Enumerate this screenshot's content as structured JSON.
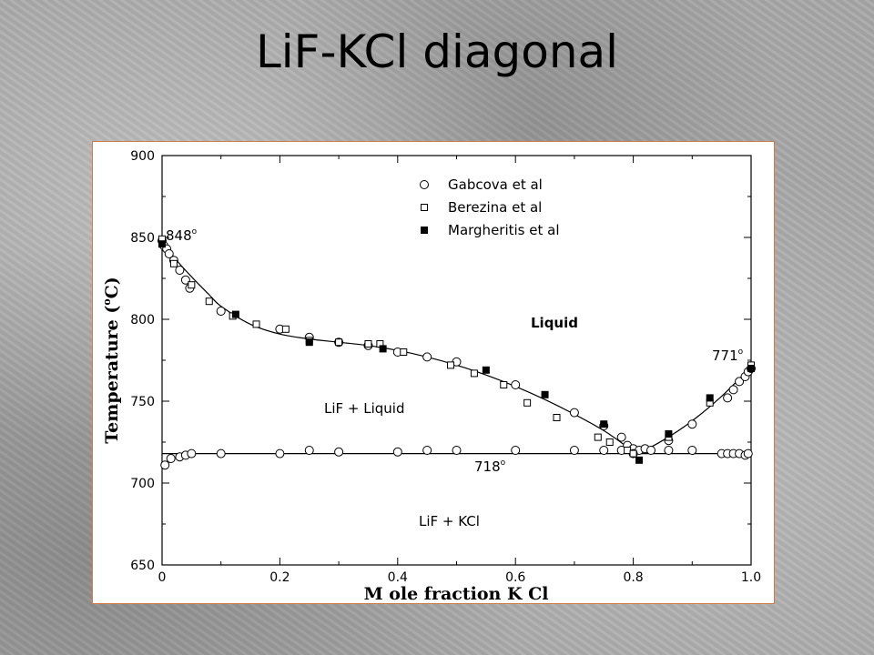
{
  "slide": {
    "title": "LiF-KCl diagonal"
  },
  "chart_data": {
    "type": "scatter",
    "title": "",
    "xlabel": "M ole fraction K Cl",
    "ylabel": "Temperature (°C)",
    "ylabel_parts": {
      "a": "Temperature (",
      "deg": "o",
      "b": "C)"
    },
    "xlim": [
      0,
      1.0
    ],
    "ylim": [
      650,
      900
    ],
    "xticks": [
      0,
      0.2,
      0.4,
      0.6,
      0.8,
      1.0
    ],
    "xtick_labels": [
      "0",
      "0.2",
      "0.4",
      "0.6",
      "0.8",
      "1.0"
    ],
    "yticks": [
      650,
      700,
      750,
      800,
      850,
      900
    ],
    "ytick_labels": [
      "650",
      "700",
      "750",
      "800",
      "850",
      "900"
    ],
    "grid": false,
    "legend_position": "top-right",
    "series": [
      {
        "name": "Gabcova et al",
        "marker": "open-circle",
        "points": [
          [
            0.0,
            848
          ],
          [
            0.003,
            845
          ],
          [
            0.008,
            843
          ],
          [
            0.012,
            840
          ],
          [
            0.02,
            836
          ],
          [
            0.03,
            830
          ],
          [
            0.04,
            824
          ],
          [
            0.047,
            819
          ],
          [
            0.1,
            805
          ],
          [
            0.2,
            794
          ],
          [
            0.25,
            789
          ],
          [
            0.3,
            786
          ],
          [
            0.35,
            784
          ],
          [
            0.4,
            780
          ],
          [
            0.45,
            777
          ],
          [
            0.5,
            774
          ],
          [
            0.6,
            760
          ],
          [
            0.7,
            743
          ],
          [
            0.75,
            735
          ],
          [
            0.78,
            728
          ],
          [
            0.79,
            723
          ],
          [
            0.8,
            721
          ],
          [
            0.81,
            720
          ],
          [
            0.82,
            721
          ],
          [
            0.86,
            726
          ],
          [
            0.9,
            736
          ],
          [
            0.96,
            752
          ],
          [
            0.97,
            757
          ],
          [
            0.98,
            762
          ],
          [
            0.99,
            765
          ],
          [
            0.995,
            768
          ],
          [
            1.0,
            770
          ],
          [
            0.005,
            711
          ],
          [
            0.015,
            715
          ],
          [
            0.03,
            716
          ],
          [
            0.04,
            717
          ],
          [
            0.05,
            718
          ],
          [
            0.1,
            718
          ],
          [
            0.2,
            718
          ],
          [
            0.25,
            720
          ],
          [
            0.3,
            719
          ],
          [
            0.4,
            719
          ],
          [
            0.45,
            720
          ],
          [
            0.5,
            720
          ],
          [
            0.6,
            720
          ],
          [
            0.7,
            720
          ],
          [
            0.75,
            720
          ],
          [
            0.78,
            720
          ],
          [
            0.8,
            718
          ],
          [
            0.83,
            720
          ],
          [
            0.86,
            720
          ],
          [
            0.9,
            720
          ],
          [
            0.95,
            718
          ],
          [
            0.96,
            718
          ],
          [
            0.97,
            718
          ],
          [
            0.98,
            718
          ],
          [
            0.99,
            717
          ],
          [
            0.995,
            718
          ]
        ]
      },
      {
        "name": "Berezina et al",
        "marker": "open-square",
        "points": [
          [
            0.0,
            849
          ],
          [
            0.02,
            834
          ],
          [
            0.05,
            821
          ],
          [
            0.08,
            811
          ],
          [
            0.12,
            802
          ],
          [
            0.16,
            797
          ],
          [
            0.21,
            794
          ],
          [
            0.25,
            787
          ],
          [
            0.3,
            786
          ],
          [
            0.35,
            785
          ],
          [
            0.37,
            785
          ],
          [
            0.41,
            780
          ],
          [
            0.49,
            772
          ],
          [
            0.53,
            767
          ],
          [
            0.58,
            760
          ],
          [
            0.62,
            749
          ],
          [
            0.67,
            740
          ],
          [
            0.74,
            728
          ],
          [
            0.76,
            725
          ],
          [
            0.79,
            720
          ],
          [
            0.8,
            718
          ],
          [
            0.86,
            728
          ],
          [
            0.93,
            749
          ],
          [
            1.0,
            772
          ]
        ]
      },
      {
        "name": "Margheritis et al",
        "marker": "filled-square",
        "points": [
          [
            0.0,
            846
          ],
          [
            0.125,
            803
          ],
          [
            0.25,
            786
          ],
          [
            0.375,
            782
          ],
          [
            0.55,
            769
          ],
          [
            0.65,
            754
          ],
          [
            0.75,
            736
          ],
          [
            0.81,
            714
          ],
          [
            0.86,
            730
          ],
          [
            0.93,
            752
          ],
          [
            1.0,
            770
          ]
        ]
      }
    ],
    "liquidus_curve": [
      [
        0.0,
        848
      ],
      [
        0.02,
        838
      ],
      [
        0.05,
        826
      ],
      [
        0.08,
        815
      ],
      [
        0.1,
        808
      ],
      [
        0.15,
        797
      ],
      [
        0.2,
        791
      ],
      [
        0.25,
        788
      ],
      [
        0.3,
        786
      ],
      [
        0.35,
        784
      ],
      [
        0.4,
        781
      ],
      [
        0.45,
        777
      ],
      [
        0.5,
        772
      ],
      [
        0.55,
        766
      ],
      [
        0.6,
        759
      ],
      [
        0.65,
        751
      ],
      [
        0.7,
        742
      ],
      [
        0.75,
        732
      ],
      [
        0.79,
        722
      ],
      [
        0.805,
        718
      ],
      [
        0.85,
        726
      ],
      [
        0.9,
        738
      ],
      [
        0.95,
        753
      ],
      [
        1.0,
        771
      ]
    ],
    "eutectic_line": {
      "y": 718
    },
    "annotations": {
      "t848": {
        "text": "848",
        "deg": "o"
      },
      "t771": {
        "text": "771",
        "deg": "o"
      },
      "t718": {
        "text": "718",
        "deg": "o"
      },
      "region_liquid": "Liquid",
      "region_lif_liquid": "LiF + Liquid",
      "region_lif_kcl": "LiF + KCl"
    }
  }
}
